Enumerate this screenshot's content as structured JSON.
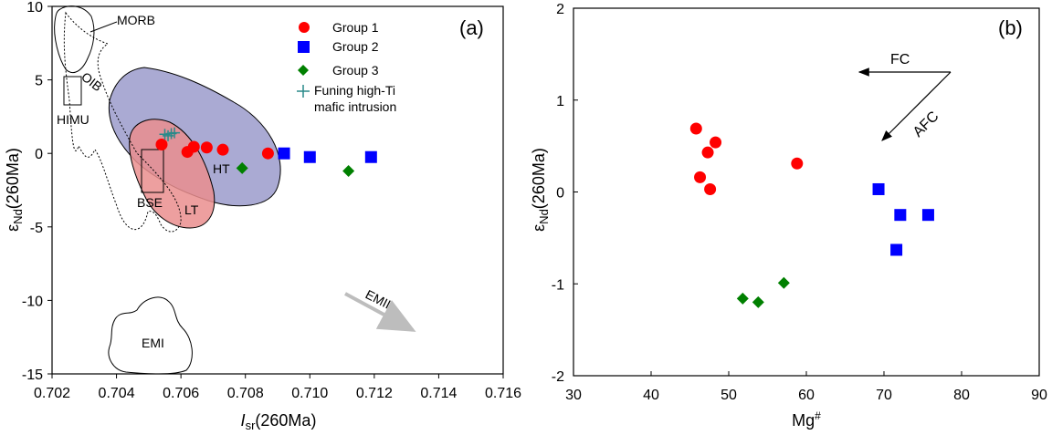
{
  "chart_data": [
    {
      "type": "scatter",
      "panel_label": "(a)",
      "xlabel_main": "I",
      "xlabel_sub": "sr",
      "xlabel_tail": "(260Ma)",
      "ylabel_main": "ε",
      "ylabel_sub": "Nd",
      "ylabel_tail": "(260Ma)",
      "xlim": [
        0.702,
        0.716
      ],
      "ylim": [
        -15,
        10
      ],
      "xticks": [
        "0.702",
        "0.704",
        "0.706",
        "0.708",
        "0.710",
        "0.712",
        "0.714",
        "0.716"
      ],
      "yticks": [
        "10",
        "5",
        "0",
        "-5",
        "-10",
        "-15"
      ],
      "series": [
        {
          "name": "Group 1",
          "marker": "circle",
          "color": "#ff0000",
          "points": [
            [
              0.7054,
              0.6
            ],
            [
              0.7062,
              0.1
            ],
            [
              0.7064,
              0.45
            ],
            [
              0.7068,
              0.4
            ],
            [
              0.7073,
              0.25
            ],
            [
              0.7087,
              0.0
            ]
          ]
        },
        {
          "name": "Group 2",
          "marker": "square",
          "color": "#0000ff",
          "points": [
            [
              0.7092,
              0.0
            ],
            [
              0.71,
              -0.25
            ],
            [
              0.7119,
              -0.25
            ]
          ]
        },
        {
          "name": "Group 3",
          "marker": "diamond",
          "color": "#008000",
          "points": [
            [
              0.7079,
              -1.0
            ],
            [
              0.7112,
              -1.2
            ]
          ]
        },
        {
          "name": "Funing high-Ti mafic intrusion",
          "marker": "plus",
          "color": "#2a8a8a",
          "points": [
            [
              0.7055,
              1.3
            ],
            [
              0.7057,
              1.35
            ],
            [
              0.7058,
              1.4
            ],
            [
              0.7056,
              1.2
            ]
          ]
        }
      ],
      "legend": {
        "placement": "top-right",
        "items": [
          "Group 1",
          "Group 2",
          "Group 3",
          "Funing high-Ti",
          "mafic intrusion"
        ]
      },
      "field_labels": [
        "MORB",
        "OIB",
        "HIMU",
        "BSE",
        "HT",
        "LT",
        "EMI",
        "EMII"
      ],
      "fill_colors": {
        "HT": "#9b9bcb",
        "LT": "#ea8e8e"
      }
    },
    {
      "type": "scatter",
      "panel_label": "(b)",
      "xlabel_main": "Mg",
      "xlabel_sup": "#",
      "ylabel_main": "ε",
      "ylabel_sub": "Nd",
      "ylabel_tail": "(260Ma)",
      "xlim": [
        30,
        90
      ],
      "ylim": [
        -2,
        2
      ],
      "xticks": [
        "30",
        "40",
        "50",
        "60",
        "70",
        "80",
        "90"
      ],
      "yticks": [
        "2",
        "1",
        "0",
        "-1",
        "-2"
      ],
      "series": [
        {
          "name": "Group 1",
          "marker": "circle",
          "color": "#ff0000",
          "points": [
            [
              45.8,
              0.69
            ],
            [
              47.3,
              0.43
            ],
            [
              48.3,
              0.54
            ],
            [
              46.3,
              0.16
            ],
            [
              47.6,
              0.03
            ],
            [
              58.8,
              0.31
            ]
          ]
        },
        {
          "name": "Group 2",
          "marker": "square",
          "color": "#0000ff",
          "points": [
            [
              69.3,
              0.03
            ],
            [
              72.1,
              -0.25
            ],
            [
              75.7,
              -0.25
            ],
            [
              71.6,
              -0.63
            ]
          ]
        },
        {
          "name": "Group 3",
          "marker": "diamond",
          "color": "#008000",
          "points": [
            [
              51.8,
              -1.16
            ],
            [
              53.8,
              -1.2
            ],
            [
              57.1,
              -0.99
            ]
          ]
        }
      ],
      "annotations": [
        "FC",
        "AFC"
      ]
    }
  ]
}
